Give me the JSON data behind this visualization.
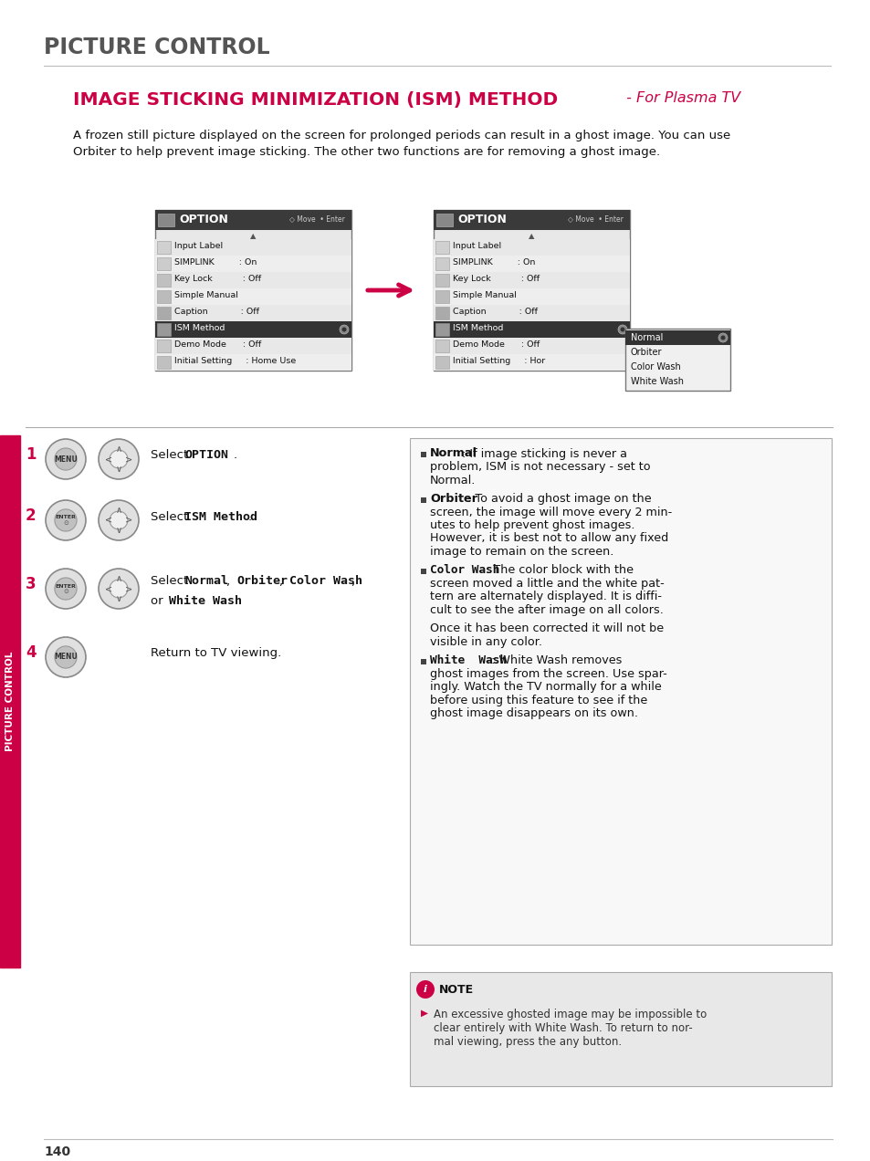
{
  "bg_color": "#ffffff",
  "page_title": "PICTURE CONTROL",
  "section_title_main": "IMAGE STICKING MINIMIZATION (ISM) METHOD",
  "section_title_suffix": " - For Plasma TV",
  "section_title_color": "#cc0044",
  "sidebar_label": "PICTURE CONTROL",
  "sidebar_color": "#cc0044",
  "page_number": "140",
  "intro_text_line1": "A frozen still picture displayed on the screen for prolonged periods can result in a ghost image. You can use",
  "intro_text_line2": "Orbiter to help prevent image sticking. The other two functions are for removing a ghost image.",
  "menu_items": [
    "Input Label",
    "SIMPLINK         : On",
    "Key Lock           : Off",
    "Simple Manual",
    "Caption            : Off",
    "ISM Method",
    "Demo Mode      : Off",
    "Initial Setting     : Home Use"
  ],
  "menu_items_right": [
    "Input Label",
    "SIMPLINK         : On",
    "Key Lock           : Off",
    "Simple Manual",
    "Caption            : Off",
    "ISM Method",
    "Demo Mode      : Off",
    "Initial Setting     : Hor"
  ],
  "dropdown_items": [
    "Normal",
    "Orbiter",
    "Color Wash",
    "White Wash"
  ],
  "note_title": "NOTE",
  "note_text": "An excessive ghosted image may be impossible to\nclear entirely with White Wash. To return to nor-\nmal viewing, press the any button."
}
